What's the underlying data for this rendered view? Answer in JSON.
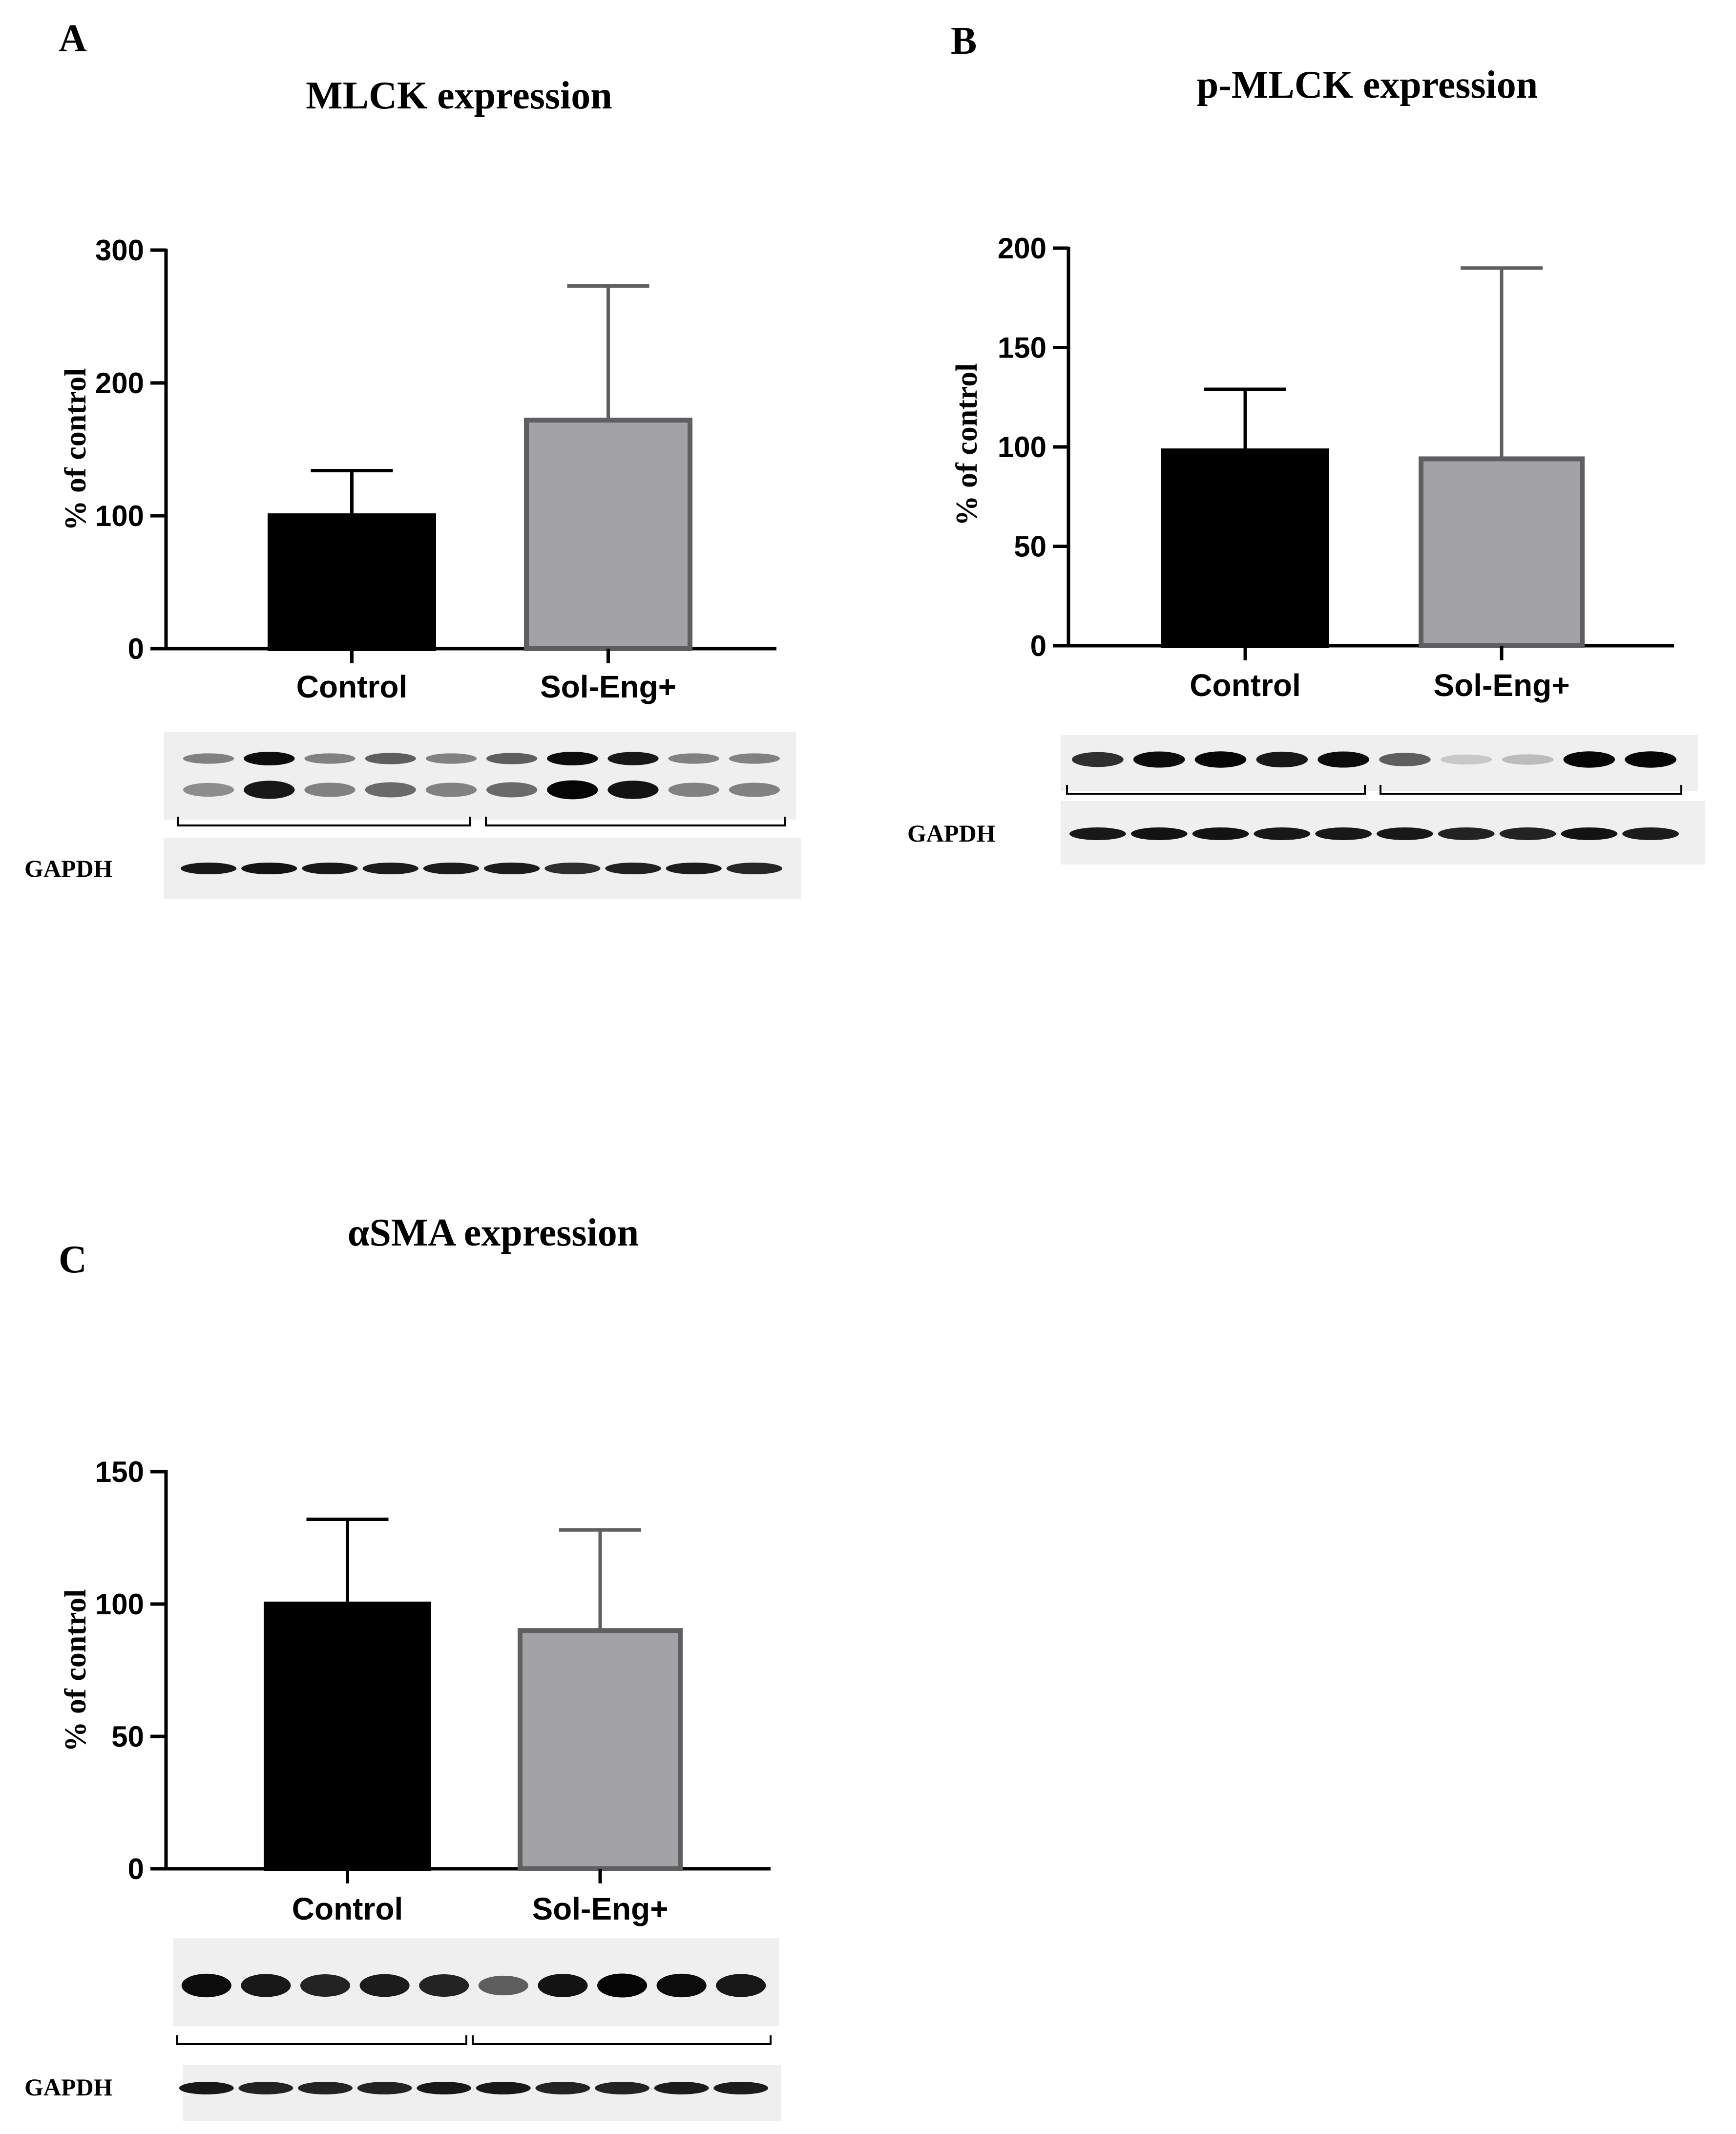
{
  "chart_data": [
    {
      "type": "bar",
      "panel": "A",
      "title": "MLCK expression",
      "ylabel": "% of control",
      "ylim": [
        0,
        300
      ],
      "yticks": [
        0,
        100,
        200,
        300
      ],
      "categories": [
        "Control",
        "Sol-Eng+"
      ],
      "values": [
        100,
        172
      ],
      "error_upper": [
        134,
        273
      ],
      "bar_colors": [
        "#000000",
        "#a3a3a6"
      ],
      "blot_label": "GAPDH",
      "blot_top_band_intensity": [
        0.45,
        0.95,
        0.45,
        0.6,
        0.45,
        0.6,
        0.95,
        0.9,
        0.45,
        0.45
      ],
      "blot_bottom_band_intensity": [
        0.4,
        0.9,
        0.45,
        0.55,
        0.45,
        0.55,
        0.98,
        0.92,
        0.45,
        0.45
      ],
      "gapdh_intensity": [
        0.9,
        0.92,
        0.9,
        0.88,
        0.88,
        0.88,
        0.8,
        0.86,
        0.88,
        0.84
      ]
    },
    {
      "type": "bar",
      "panel": "B",
      "title": "p-MLCK expression",
      "ylabel": "% of control",
      "ylim": [
        0,
        200
      ],
      "yticks": [
        0,
        50,
        100,
        150,
        200
      ],
      "categories": [
        "Control",
        "Sol-Eng+"
      ],
      "values": [
        98,
        94
      ],
      "error_upper": [
        129,
        190
      ],
      "bar_colors": [
        "#000000",
        "#a3a3a6"
      ],
      "blot_label": "GAPDH",
      "blot_band_intensity": [
        0.8,
        0.95,
        0.98,
        0.9,
        0.95,
        0.6,
        0.15,
        0.2,
        0.98,
        0.98
      ],
      "gapdh_intensity": [
        0.9,
        0.92,
        0.92,
        0.9,
        0.9,
        0.9,
        0.85,
        0.85,
        0.92,
        0.88
      ]
    },
    {
      "type": "bar",
      "panel": "C",
      "title": "αSMA expression",
      "ylabel": "% of control",
      "ylim": [
        0,
        150
      ],
      "yticks": [
        0,
        50,
        100,
        150
      ],
      "categories": [
        "Control",
        "Sol-Eng+"
      ],
      "values": [
        100,
        90
      ],
      "error_upper": [
        132,
        128
      ],
      "bar_colors": [
        "#000000",
        "#a3a3a6"
      ],
      "blot_label": "GAPDH",
      "blot_band_intensity": [
        0.95,
        0.9,
        0.85,
        0.88,
        0.85,
        0.6,
        0.92,
        0.98,
        0.95,
        0.9
      ],
      "gapdh_intensity": [
        0.9,
        0.85,
        0.85,
        0.85,
        0.9,
        0.9,
        0.85,
        0.85,
        0.88,
        0.88
      ]
    }
  ]
}
